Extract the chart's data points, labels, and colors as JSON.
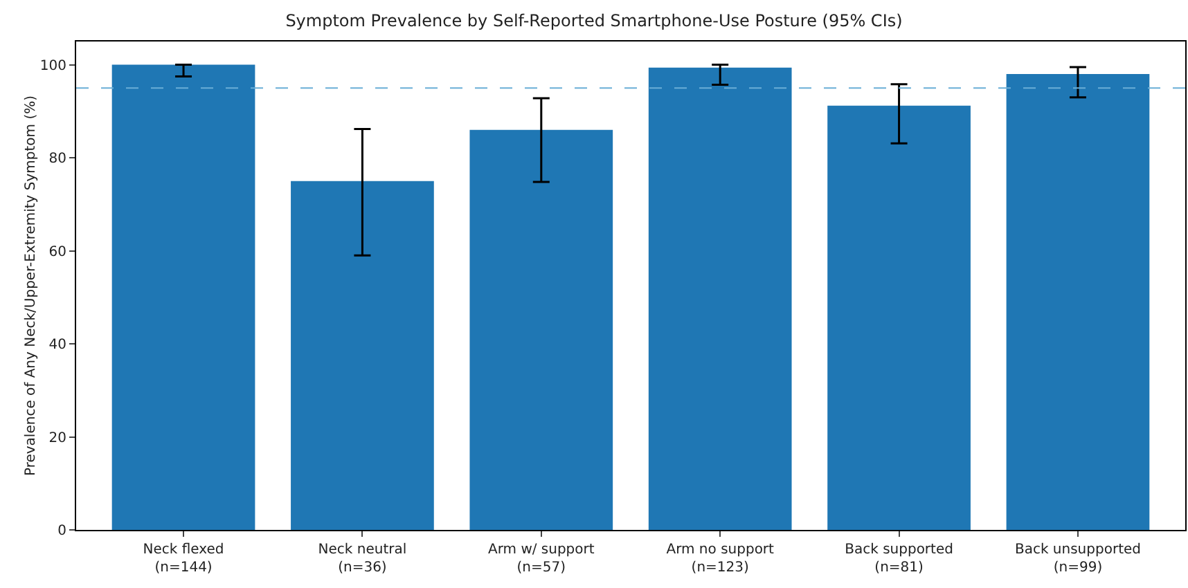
{
  "chart_data": {
    "type": "bar",
    "title": "Symptom Prevalence by Self-Reported Smartphone-Use Posture (95% CIs)",
    "ylabel": "Prevalence of Any Neck/Upper-Extremity Symptom (%)",
    "categories": [
      "Neck flexed\n(n=144)",
      "Neck neutral\n(n=36)",
      "Arm w/ support\n(n=57)",
      "Arm no support\n(n=123)",
      "Back supported\n(n=81)",
      "Back unsupported\n(n=99)"
    ],
    "values": [
      100,
      75,
      86,
      99.4,
      91.2,
      98
    ],
    "errors": [
      [
        97.5,
        100
      ],
      [
        59,
        86.2
      ],
      [
        74.8,
        92.8
      ],
      [
        95.7,
        100
      ],
      [
        83.1,
        95.8
      ],
      [
        93,
        99.5
      ]
    ],
    "color": "#1f77b4",
    "ylim": [
      0,
      105
    ],
    "yticks": [
      0,
      20,
      40,
      60,
      80,
      100
    ],
    "grid": false,
    "ref_lines": [
      {
        "axis": "y",
        "value": 95,
        "color": "#6aaed6",
        "line_style": "dashed"
      }
    ]
  }
}
